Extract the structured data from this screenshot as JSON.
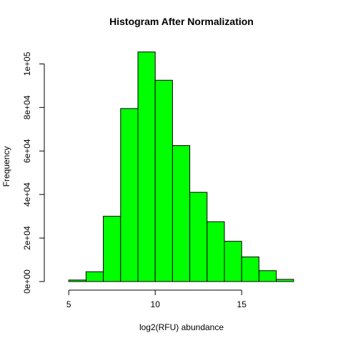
{
  "chart_data": {
    "type": "bar",
    "title": "Histogram After Normalization",
    "xlabel": "log2(RFU) abundance",
    "ylabel": "Frequency",
    "bin_edges": [
      5,
      6,
      7,
      8,
      9,
      10,
      11,
      12,
      13,
      14,
      15,
      16,
      17,
      18
    ],
    "values": [
      700,
      4500,
      30000,
      79500,
      105500,
      92500,
      62500,
      41000,
      27500,
      18500,
      11300,
      5000,
      1000
    ],
    "xlim": [
      4,
      19
    ],
    "ylim": [
      0,
      110000
    ],
    "x_ticks": [
      5,
      10,
      15
    ],
    "x_tick_labels": [
      "5",
      "10",
      "15"
    ],
    "y_ticks": [
      0,
      20000,
      40000,
      60000,
      80000,
      100000
    ],
    "y_tick_labels": [
      "0e+00",
      "2e+04",
      "4e+04",
      "6e+04",
      "8e+04",
      "1e+05"
    ],
    "bar_color": "#00ff00",
    "bar_border_color": "#000000",
    "grid": false
  }
}
